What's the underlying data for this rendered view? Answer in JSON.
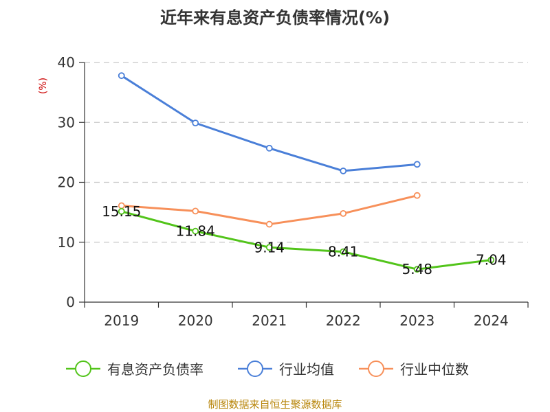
{
  "chart_data": {
    "type": "line",
    "title": "近年来有息资产负债率情况(%)",
    "y_unit_label": "(%)",
    "categories": [
      "2019",
      "2020",
      "2021",
      "2022",
      "2023",
      "2024"
    ],
    "ylim": [
      0,
      40
    ],
    "y_ticks": [
      0,
      10,
      20,
      30,
      40
    ],
    "y_tick_labels": [
      "0",
      "10",
      "20",
      "30",
      "40"
    ],
    "grid": true,
    "legend_position": "bottom",
    "series": [
      {
        "name": "有息资产负债率",
        "color": "#52c41a",
        "values": [
          15.15,
          11.84,
          9.14,
          8.41,
          5.48,
          7.04
        ],
        "labels": [
          "15.15",
          "11.84",
          "9.14",
          "8.41",
          "5.48",
          "7.04"
        ]
      },
      {
        "name": "行业均值",
        "color": "#4a7fd8",
        "values": [
          37.8,
          29.9,
          25.7,
          21.9,
          23.0,
          null
        ]
      },
      {
        "name": "行业中位数",
        "color": "#f7905a",
        "values": [
          16.1,
          15.2,
          13.0,
          14.8,
          17.8,
          null
        ]
      }
    ]
  },
  "source_note": "制图数据来自恒生聚源数据库"
}
